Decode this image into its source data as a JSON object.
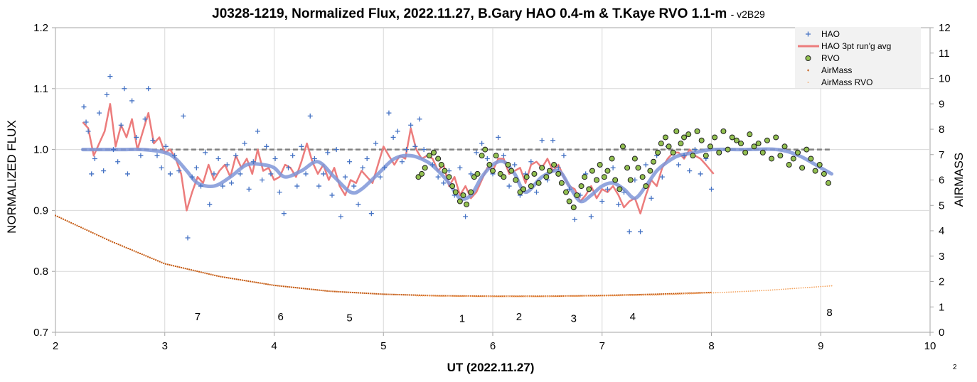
{
  "page": {
    "title": "J0328-1219, Normalized Flux, 2022.11.27, B.Gary HAO 0.4-m & T.Kaye RVO 1.1-m",
    "version": "- v2B29",
    "corner_label": "2"
  },
  "chart_data": {
    "type": "scatter",
    "xlabel": "UT (2022.11.27)",
    "ylabel": "NORMALIZED FLUX",
    "y2label": "AIRMASS",
    "xlim": [
      2,
      10
    ],
    "ylim": [
      0.7,
      1.2
    ],
    "y2lim": [
      0,
      12
    ],
    "x_ticks": [
      "2",
      "3",
      "4",
      "5",
      "6",
      "7",
      "8",
      "9",
      "10"
    ],
    "y_ticks": [
      "0.7",
      "0.8",
      "0.9",
      "1.0",
      "1.1",
      "1.2"
    ],
    "y2_ticks": [
      "0",
      "1",
      "2",
      "3",
      "4",
      "5",
      "6",
      "7",
      "8",
      "9",
      "10",
      "11",
      "12"
    ],
    "grid": true,
    "legend_position": "top-right",
    "colors": {
      "hao": "#4472c4",
      "hao_avg": "#ec7c7c",
      "rvo_fill": "#92c050",
      "rvo_edge": "#1f1f1f",
      "airmass": "#c55a11",
      "airmass_rvo": "#f4a460",
      "model": "#7f96d8",
      "reference": "#808080"
    },
    "legend": [
      "HAO",
      "HAO 3pt run'g avg",
      "RVO",
      "AirMass",
      "AirMass RVO"
    ],
    "reference_line": {
      "y": 1.0,
      "x_range": [
        2.24,
        9.1
      ]
    },
    "annotations": [
      {
        "text": "7",
        "x": 3.3,
        "y": 0.72
      },
      {
        "text": "6",
        "x": 4.06,
        "y": 0.72
      },
      {
        "text": "5",
        "x": 4.69,
        "y": 0.718
      },
      {
        "text": "1",
        "x": 5.72,
        "y": 0.717
      },
      {
        "text": "2",
        "x": 6.24,
        "y": 0.72
      },
      {
        "text": "3",
        "x": 6.74,
        "y": 0.717
      },
      {
        "text": "4",
        "x": 7.28,
        "y": 0.72
      },
      {
        "text": "8",
        "x": 9.08,
        "y": 0.727
      }
    ],
    "series": [
      {
        "name": "HAO 3pt run'g avg",
        "type": "line",
        "x": [
          2.25,
          2.3,
          2.35,
          2.4,
          2.45,
          2.5,
          2.55,
          2.6,
          2.65,
          2.7,
          2.75,
          2.8,
          2.85,
          2.9,
          2.95,
          3.0,
          3.05,
          3.1,
          3.15,
          3.2,
          3.25,
          3.3,
          3.35,
          3.4,
          3.45,
          3.5,
          3.55,
          3.6,
          3.65,
          3.7,
          3.75,
          3.8,
          3.85,
          3.9,
          3.95,
          4.0,
          4.05,
          4.1,
          4.15,
          4.2,
          4.25,
          4.3,
          4.35,
          4.4,
          4.45,
          4.5,
          4.55,
          4.6,
          4.65,
          4.7,
          4.75,
          4.8,
          4.85,
          4.9,
          4.95,
          5.0,
          5.05,
          5.1,
          5.15,
          5.2,
          5.25,
          5.3,
          5.35,
          5.4,
          5.45,
          5.5,
          5.55,
          5.6,
          5.65,
          5.7,
          5.75,
          5.8,
          5.85,
          5.9,
          5.95,
          6.0,
          6.05,
          6.1,
          6.15,
          6.2,
          6.25,
          6.3,
          6.35,
          6.4,
          6.45,
          6.5,
          6.55,
          6.6,
          6.65,
          6.7,
          6.75,
          6.8,
          6.85,
          6.9,
          6.95,
          7.0,
          7.05,
          7.1,
          7.15,
          7.2,
          7.25,
          7.3,
          7.35,
          7.4,
          7.45,
          7.5,
          7.55,
          7.6,
          7.65,
          7.7,
          7.75,
          7.8,
          7.85,
          7.9,
          7.95,
          8.02
        ],
        "y": [
          1.045,
          1.035,
          0.99,
          1.01,
          1.03,
          1.075,
          1.005,
          1.04,
          1.02,
          1.05,
          1.0,
          1.03,
          1.06,
          1.01,
          1.02,
          0.995,
          1.0,
          0.985,
          0.96,
          0.9,
          0.93,
          0.955,
          0.945,
          0.975,
          0.95,
          0.965,
          0.975,
          0.955,
          0.99,
          0.97,
          0.985,
          0.96,
          1.0,
          0.965,
          0.97,
          0.95,
          0.955,
          0.975,
          0.97,
          0.955,
          0.98,
          1.01,
          0.98,
          0.96,
          0.975,
          0.95,
          0.97,
          0.94,
          0.925,
          0.95,
          0.945,
          0.965,
          0.955,
          0.945,
          0.975,
          1.005,
          0.99,
          0.975,
          0.99,
          0.985,
          1.035,
          1.0,
          0.985,
          0.99,
          0.985,
          0.965,
          0.975,
          0.94,
          0.955,
          0.925,
          0.94,
          0.92,
          0.93,
          0.95,
          0.97,
          0.965,
          0.985,
          0.985,
          0.96,
          0.965,
          0.97,
          0.945,
          0.975,
          0.98,
          0.97,
          0.985,
          0.965,
          0.975,
          0.955,
          0.94,
          0.935,
          0.915,
          0.925,
          0.94,
          0.92,
          0.935,
          0.93,
          0.94,
          0.925,
          0.905,
          0.915,
          0.92,
          0.895,
          0.925,
          0.95,
          0.94,
          0.97,
          0.985,
          0.995,
          0.995,
          0.985,
          1.0,
          0.99,
          0.985,
          0.975,
          0.96
        ]
      },
      {
        "name": "HAO",
        "type": "scatter",
        "x": [
          2.26,
          2.28,
          2.3,
          2.33,
          2.36,
          2.4,
          2.44,
          2.47,
          2.5,
          2.53,
          2.57,
          2.6,
          2.63,
          2.66,
          2.7,
          2.74,
          2.78,
          2.82,
          2.85,
          2.89,
          2.93,
          2.97,
          3.01,
          3.05,
          3.09,
          3.13,
          3.17,
          3.21,
          3.25,
          3.29,
          3.33,
          3.37,
          3.41,
          3.45,
          3.49,
          3.53,
          3.57,
          3.61,
          3.65,
          3.69,
          3.73,
          3.77,
          3.81,
          3.85,
          3.89,
          3.93,
          3.97,
          4.01,
          4.05,
          4.09,
          4.13,
          4.17,
          4.21,
          4.25,
          4.29,
          4.33,
          4.37,
          4.41,
          4.45,
          4.49,
          4.53,
          4.57,
          4.61,
          4.65,
          4.69,
          4.73,
          4.77,
          4.81,
          4.85,
          4.89,
          4.93,
          4.97,
          5.01,
          5.05,
          5.09,
          5.13,
          5.17,
          5.21,
          5.25,
          5.29,
          5.33,
          5.37,
          5.41,
          5.45,
          5.5,
          5.55,
          5.6,
          5.65,
          5.7,
          5.75,
          5.8,
          5.85,
          5.9,
          5.95,
          6.0,
          6.05,
          6.1,
          6.15,
          6.2,
          6.25,
          6.3,
          6.35,
          6.4,
          6.45,
          6.5,
          6.55,
          6.6,
          6.65,
          6.7,
          6.75,
          6.8,
          6.85,
          6.9,
          6.95,
          7.0,
          7.05,
          7.1,
          7.15,
          7.2,
          7.25,
          7.3,
          7.35,
          7.4,
          7.45,
          7.5,
          7.55,
          7.6,
          7.65,
          7.7,
          7.75,
          7.8,
          7.85,
          7.9,
          7.95,
          8.0
        ],
        "y": [
          1.07,
          1.045,
          1.03,
          0.96,
          0.985,
          1.06,
          0.965,
          1.09,
          1.12,
          1.0,
          0.98,
          1.04,
          1.1,
          0.96,
          1.08,
          1.02,
          0.99,
          1.05,
          1.1,
          1.015,
          0.99,
          0.97,
          1.005,
          0.96,
          0.99,
          0.965,
          1.055,
          0.855,
          0.955,
          0.97,
          0.94,
          0.995,
          0.91,
          0.96,
          0.985,
          0.94,
          0.975,
          0.945,
          0.99,
          0.96,
          1.01,
          0.935,
          0.98,
          1.03,
          0.95,
          1.005,
          0.96,
          0.985,
          0.93,
          0.895,
          0.97,
          0.99,
          0.94,
          1.005,
          0.96,
          1.055,
          0.985,
          0.94,
          0.96,
          0.995,
          0.925,
          1.0,
          0.89,
          0.955,
          0.98,
          0.94,
          0.91,
          0.97,
          0.985,
          0.895,
          1.01,
          0.955,
          0.97,
          1.06,
          1.02,
          1.03,
          0.98,
          1.0,
          1.04,
          1.005,
          1.05,
          1.0,
          0.99,
          0.975,
          0.955,
          0.945,
          0.965,
          0.925,
          0.97,
          0.89,
          0.96,
          0.995,
          1.01,
          0.985,
          0.96,
          1.02,
          0.99,
          0.94,
          0.975,
          0.925,
          0.96,
          0.98,
          0.93,
          1.015,
          0.95,
          1.015,
          0.97,
          0.99,
          0.935,
          0.885,
          0.925,
          0.96,
          0.89,
          0.95,
          0.915,
          0.935,
          0.97,
          0.91,
          0.93,
          0.865,
          0.95,
          0.865,
          0.975,
          0.92,
          0.99,
          0.955,
          1.005,
          0.995,
          0.975,
          0.99,
          0.965,
          1.0,
          0.96,
          0.985,
          0.935
        ]
      },
      {
        "name": "RVO",
        "type": "scatter",
        "x": [
          5.32,
          5.35,
          5.38,
          5.42,
          5.46,
          5.5,
          5.53,
          5.56,
          5.6,
          5.63,
          5.66,
          5.7,
          5.73,
          5.76,
          5.8,
          5.83,
          5.86,
          5.9,
          5.93,
          5.97,
          6.0,
          6.03,
          6.07,
          6.1,
          6.14,
          6.17,
          6.21,
          6.25,
          6.28,
          6.31,
          6.35,
          6.38,
          6.42,
          6.45,
          6.49,
          6.52,
          6.56,
          6.6,
          6.63,
          6.67,
          6.7,
          6.74,
          6.77,
          6.81,
          6.84,
          6.88,
          6.91,
          6.95,
          6.98,
          7.02,
          7.05,
          7.09,
          7.12,
          7.16,
          7.19,
          7.23,
          7.26,
          7.3,
          7.33,
          7.37,
          7.4,
          7.44,
          7.47,
          7.51,
          7.54,
          7.58,
          7.61,
          7.65,
          7.68,
          7.72,
          7.75,
          7.79,
          7.83,
          7.87,
          7.91,
          7.95,
          7.99,
          8.03,
          8.07,
          8.11,
          8.15,
          8.19,
          8.23,
          8.27,
          8.31,
          8.35,
          8.39,
          8.43,
          8.47,
          8.51,
          8.55,
          8.59,
          8.63,
          8.67,
          8.71,
          8.75,
          8.79,
          8.83,
          8.87,
          8.91,
          8.95,
          8.99,
          9.03,
          9.07
        ],
        "y": [
          0.955,
          0.96,
          0.97,
          0.99,
          0.995,
          0.985,
          0.975,
          0.965,
          0.955,
          0.94,
          0.93,
          0.915,
          0.925,
          0.91,
          0.93,
          0.955,
          0.96,
          0.99,
          1.0,
          0.975,
          0.965,
          0.99,
          0.96,
          0.955,
          0.975,
          0.965,
          0.95,
          0.93,
          0.935,
          0.955,
          0.94,
          0.96,
          0.945,
          0.97,
          0.955,
          0.965,
          0.975,
          0.96,
          0.945,
          0.93,
          0.915,
          0.905,
          0.925,
          0.94,
          0.955,
          0.935,
          0.965,
          0.95,
          0.975,
          0.955,
          0.965,
          0.985,
          0.95,
          0.935,
          1.005,
          0.97,
          0.95,
          0.985,
          0.97,
          0.955,
          0.94,
          0.965,
          0.98,
          0.995,
          1.01,
          1.02,
          1.005,
          0.995,
          1.03,
          1.01,
          1.02,
          1.025,
          0.99,
          1.03,
          1.015,
          0.99,
          1.005,
          1.02,
          0.995,
          1.03,
          1.0,
          1.02,
          1.015,
          1.01,
          0.995,
          1.025,
          1.005,
          1.01,
          0.995,
          1.015,
          0.985,
          1.02,
          0.99,
          1.005,
          0.975,
          0.985,
          0.995,
          0.97,
          1.0,
          0.985,
          0.965,
          0.975,
          0.96,
          0.945
        ]
      }
    ],
    "airmass": {
      "name": "AirMass",
      "x_range": [
        2.0,
        8.0
      ],
      "y_formula_points": {
        "x": [
          2.0,
          2.5,
          3.0,
          3.5,
          4.0,
          4.5,
          5.0,
          5.5,
          6.0,
          6.5,
          7.0,
          7.5,
          8.0
        ],
        "y": [
          4.6,
          3.6,
          2.7,
          2.2,
          1.85,
          1.62,
          1.5,
          1.44,
          1.42,
          1.42,
          1.45,
          1.5,
          1.57
        ]
      }
    },
    "airmass_rvo": {
      "name": "AirMass RVO",
      "x": [
        5.3,
        5.6,
        6.0,
        6.5,
        7.0,
        7.5,
        8.0,
        8.5,
        9.1
      ],
      "y": [
        1.44,
        1.42,
        1.41,
        1.41,
        1.43,
        1.47,
        1.55,
        1.65,
        1.83
      ]
    },
    "model": {
      "x": [
        2.25,
        2.4,
        2.6,
        2.8,
        3.0,
        3.1,
        3.2,
        3.3,
        3.45,
        3.6,
        3.75,
        3.9,
        4.0,
        4.1,
        4.25,
        4.4,
        4.55,
        4.7,
        4.8,
        4.95,
        5.1,
        5.25,
        5.4,
        5.5,
        5.6,
        5.7,
        5.8,
        5.9,
        6.0,
        6.1,
        6.2,
        6.3,
        6.45,
        6.6,
        6.7,
        6.8,
        6.9,
        7.0,
        7.1,
        7.2,
        7.3,
        7.4,
        7.5,
        7.6,
        7.7,
        7.85,
        8.0,
        8.3,
        8.6,
        8.8,
        9.0,
        9.1
      ],
      "y": [
        1.0,
        1.0,
        1.0,
        1.0,
        0.995,
        0.985,
        0.965,
        0.945,
        0.94,
        0.955,
        0.975,
        0.975,
        0.97,
        0.955,
        0.965,
        0.98,
        0.955,
        0.93,
        0.935,
        0.96,
        0.985,
        0.99,
        0.98,
        0.965,
        0.945,
        0.92,
        0.925,
        0.955,
        0.975,
        0.98,
        0.96,
        0.93,
        0.955,
        0.965,
        0.94,
        0.915,
        0.925,
        0.94,
        0.945,
        0.935,
        0.92,
        0.94,
        0.965,
        0.98,
        0.99,
        0.995,
        1.0,
        1.0,
        1.0,
        0.99,
        0.97,
        0.96
      ]
    }
  }
}
